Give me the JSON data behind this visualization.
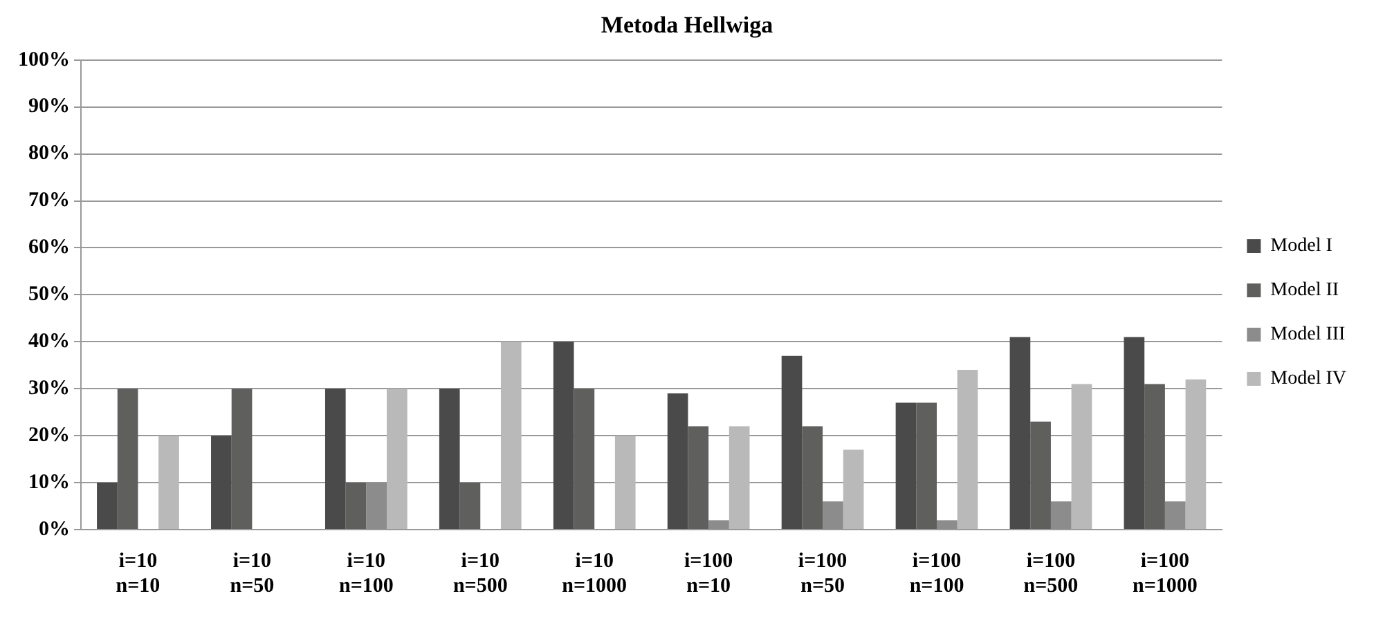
{
  "chart_data": {
    "type": "bar",
    "title": "Metoda Hellwiga",
    "categories": [
      "i=10\nn=10",
      "i=10\nn=50",
      "i=10\nn=100",
      "i=10\nn=500",
      "i=10\nn=1000",
      "i=100\nn=10",
      "i=100\nn=50",
      "i=100\nn=100",
      "i=100\nn=500",
      "i=100\nn=1000"
    ],
    "series": [
      {
        "name": "Model I",
        "color": "#494a49",
        "values": [
          10,
          20,
          30,
          30,
          40,
          29,
          37,
          27,
          41,
          41
        ]
      },
      {
        "name": "Model II",
        "color": "#5f5f5e",
        "values": [
          30,
          30,
          10,
          10,
          30,
          22,
          22,
          27,
          23,
          31
        ]
      },
      {
        "name": "Model III",
        "color": "#8c8c8c",
        "values": [
          0,
          0,
          10,
          0,
          0,
          2,
          6,
          2,
          6,
          6
        ]
      },
      {
        "name": "Model IV",
        "color": "#b9b9b9",
        "values": [
          20,
          0,
          30,
          40,
          20,
          22,
          17,
          34,
          31,
          32
        ]
      }
    ],
    "ylim": [
      0,
      100
    ],
    "yticks": [
      {
        "value": 0,
        "label": "0%"
      },
      {
        "value": 10,
        "label": "10%"
      },
      {
        "value": 20,
        "label": "20%"
      },
      {
        "value": 30,
        "label": "30%"
      },
      {
        "value": 40,
        "label": "40%"
      },
      {
        "value": 50,
        "label": "50%"
      },
      {
        "value": 60,
        "label": "60%"
      },
      {
        "value": 70,
        "label": "70%"
      },
      {
        "value": 80,
        "label": "80%"
      },
      {
        "value": 90,
        "label": "90%"
      },
      {
        "value": 100,
        "label": "100%"
      }
    ],
    "grid": "y",
    "legend": "right"
  }
}
